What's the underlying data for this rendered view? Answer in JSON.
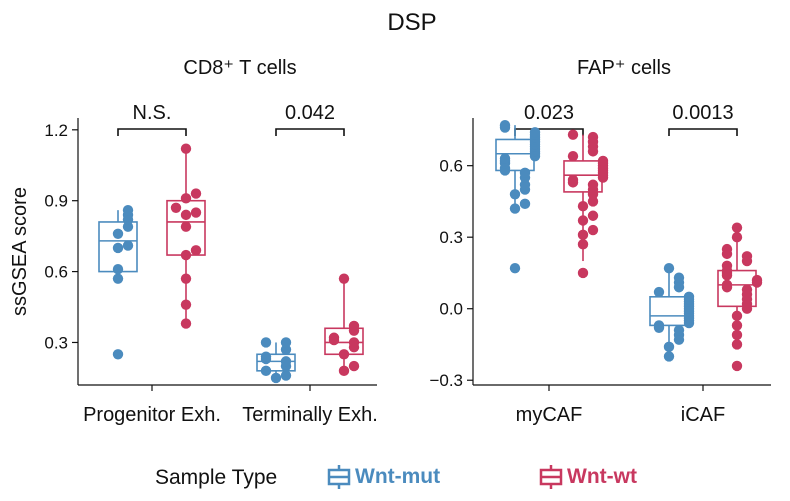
{
  "colors": {
    "mut": "#4b8bbe",
    "wt": "#c8385f",
    "axis": "#111111"
  },
  "chart_data": {
    "title": "DSP",
    "legend": {
      "title": "Sample Type",
      "entries": [
        {
          "key": "mut",
          "label": "Wnt-mut"
        },
        {
          "key": "wt",
          "label": "Wnt-wt"
        }
      ],
      "placement": "bottom"
    },
    "panels": [
      {
        "type": "box",
        "subtitle": "CD8⁺ T cells",
        "ylabel": "ssGSEA score",
        "ylim": [
          0.12,
          1.25
        ],
        "yticks": [
          0.3,
          0.6,
          0.9,
          1.2
        ],
        "ytick_labels": [
          "0.3",
          "0.6",
          "0.9",
          "1.2"
        ],
        "categories": [
          "Progenitor Exh.",
          "Terminally Exh."
        ],
        "groups": [
          {
            "category": "Progenitor Exh.",
            "pvalue": "N.S.",
            "boxes": [
              {
                "key": "mut",
                "q1": 0.6,
                "median": 0.73,
                "q3": 0.81,
                "whislo": 0.56,
                "whishi": 0.86,
                "points": [
                  0.25,
                  0.57,
                  0.61,
                  0.7,
                  0.71,
                  0.76,
                  0.79,
                  0.82,
                  0.84,
                  0.86
                ]
              },
              {
                "key": "wt",
                "q1": 0.67,
                "median": 0.81,
                "q3": 0.9,
                "whislo": 0.38,
                "whishi": 1.12,
                "points": [
                  0.38,
                  0.46,
                  0.57,
                  0.67,
                  0.69,
                  0.79,
                  0.84,
                  0.85,
                  0.87,
                  0.91,
                  0.93,
                  1.12
                ]
              }
            ]
          },
          {
            "category": "Terminally Exh.",
            "pvalue": "0.042",
            "boxes": [
              {
                "key": "mut",
                "q1": 0.18,
                "median": 0.22,
                "q3": 0.25,
                "whislo": 0.15,
                "whishi": 0.3,
                "points": [
                  0.15,
                  0.16,
                  0.18,
                  0.2,
                  0.22,
                  0.23,
                  0.24,
                  0.27,
                  0.3,
                  0.3
                ]
              },
              {
                "key": "wt",
                "q1": 0.25,
                "median": 0.3,
                "q3": 0.36,
                "whislo": 0.18,
                "whishi": 0.57,
                "points": [
                  0.18,
                  0.2,
                  0.25,
                  0.28,
                  0.3,
                  0.31,
                  0.32,
                  0.35,
                  0.37,
                  0.57
                ]
              }
            ]
          }
        ]
      },
      {
        "type": "box",
        "subtitle": "FAP⁺ cells",
        "ylabel": "",
        "ylim": [
          -0.32,
          0.8
        ],
        "yticks": [
          -0.3,
          0.0,
          0.3,
          0.6
        ],
        "ytick_labels": [
          "−0.3",
          "0.0",
          "0.3",
          "0.6"
        ],
        "categories": [
          "myCAF",
          "iCAF"
        ],
        "groups": [
          {
            "category": "myCAF",
            "pvalue": "0.023",
            "boxes": [
              {
                "key": "mut",
                "q1": 0.58,
                "median": 0.65,
                "q3": 0.71,
                "whislo": 0.42,
                "whishi": 0.77,
                "points": [
                  0.17,
                  0.42,
                  0.44,
                  0.48,
                  0.5,
                  0.52,
                  0.55,
                  0.57,
                  0.58,
                  0.59,
                  0.61,
                  0.62,
                  0.63,
                  0.64,
                  0.65,
                  0.66,
                  0.67,
                  0.68,
                  0.69,
                  0.7,
                  0.71,
                  0.72,
                  0.73,
                  0.74,
                  0.76,
                  0.77
                ]
              },
              {
                "key": "wt",
                "q1": 0.49,
                "median": 0.56,
                "q3": 0.62,
                "whislo": 0.2,
                "whishi": 0.73,
                "points": [
                  0.15,
                  0.27,
                  0.31,
                  0.33,
                  0.37,
                  0.39,
                  0.43,
                  0.45,
                  0.48,
                  0.5,
                  0.52,
                  0.53,
                  0.54,
                  0.55,
                  0.56,
                  0.57,
                  0.58,
                  0.59,
                  0.6,
                  0.61,
                  0.62,
                  0.64,
                  0.66,
                  0.68,
                  0.7,
                  0.72,
                  0.73
                ]
              }
            ]
          },
          {
            "category": "iCAF",
            "pvalue": "0.0013",
            "boxes": [
              {
                "key": "mut",
                "q1": -0.07,
                "median": -0.03,
                "q3": 0.05,
                "whislo": -0.16,
                "whishi": 0.17,
                "points": [
                  -0.2,
                  -0.16,
                  -0.13,
                  -0.11,
                  -0.09,
                  -0.08,
                  -0.07,
                  -0.06,
                  -0.05,
                  -0.04,
                  -0.03,
                  -0.02,
                  -0.01,
                  0.0,
                  0.01,
                  0.02,
                  0.03,
                  0.04,
                  0.05,
                  0.07,
                  0.09,
                  0.11,
                  0.13,
                  0.17
                ]
              },
              {
                "key": "wt",
                "q1": 0.01,
                "median": 0.1,
                "q3": 0.16,
                "whislo": -0.15,
                "whishi": 0.3,
                "points": [
                  -0.24,
                  -0.15,
                  -0.11,
                  -0.07,
                  -0.03,
                  0.0,
                  0.02,
                  0.04,
                  0.06,
                  0.08,
                  0.09,
                  0.1,
                  0.11,
                  0.12,
                  0.14,
                  0.15,
                  0.16,
                  0.18,
                  0.2,
                  0.22,
                  0.23,
                  0.25,
                  0.3,
                  0.34
                ]
              }
            ]
          }
        ]
      }
    ]
  }
}
